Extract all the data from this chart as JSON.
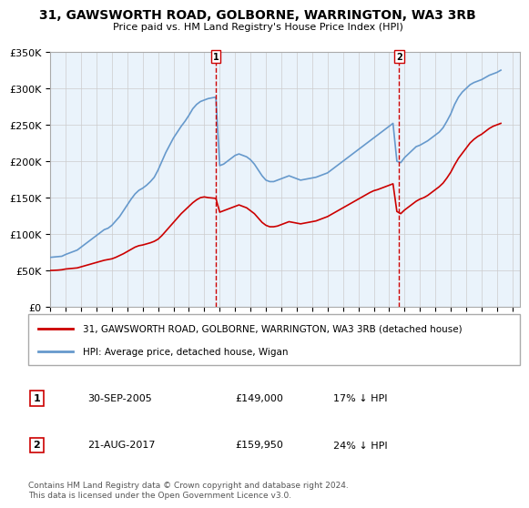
{
  "title": "31, GAWSWORTH ROAD, GOLBORNE, WARRINGTON, WA3 3RB",
  "subtitle": "Price paid vs. HM Land Registry's House Price Index (HPI)",
  "ylabel": "",
  "ylim": [
    0,
    350000
  ],
  "yticks": [
    0,
    50000,
    100000,
    150000,
    200000,
    250000,
    300000,
    350000
  ],
  "ytick_labels": [
    "£0",
    "£50K",
    "£100K",
    "£150K",
    "£200K",
    "£250K",
    "£300K",
    "£350K"
  ],
  "xlim_start": 1995.0,
  "xlim_end": 2025.5,
  "sale1_x": 2005.75,
  "sale1_label": "1",
  "sale1_date": "30-SEP-2005",
  "sale1_price": "£149,000",
  "sale1_hpi": "17% ↓ HPI",
  "sale2_x": 2017.65,
  "sale2_label": "2",
  "sale2_date": "21-AUG-2017",
  "sale2_price": "£159,950",
  "sale2_hpi": "24% ↓ HPI",
  "line_red_color": "#cc0000",
  "line_blue_color": "#6699cc",
  "grid_color": "#cccccc",
  "background_color": "#eaf3fb",
  "legend_label_red": "31, GAWSWORTH ROAD, GOLBORNE, WARRINGTON, WA3 3RB (detached house)",
  "legend_label_blue": "HPI: Average price, detached house, Wigan",
  "footer": "Contains HM Land Registry data © Crown copyright and database right 2024.\nThis data is licensed under the Open Government Licence v3.0.",
  "hpi_years": [
    1995.0,
    1995.25,
    1995.5,
    1995.75,
    1996.0,
    1996.25,
    1996.5,
    1996.75,
    1997.0,
    1997.25,
    1997.5,
    1997.75,
    1998.0,
    1998.25,
    1998.5,
    1998.75,
    1999.0,
    1999.25,
    1999.5,
    1999.75,
    2000.0,
    2000.25,
    2000.5,
    2000.75,
    2001.0,
    2001.25,
    2001.5,
    2001.75,
    2002.0,
    2002.25,
    2002.5,
    2002.75,
    2003.0,
    2003.25,
    2003.5,
    2003.75,
    2004.0,
    2004.25,
    2004.5,
    2004.75,
    2005.0,
    2005.25,
    2005.5,
    2005.75,
    2006.0,
    2006.25,
    2006.5,
    2006.75,
    2007.0,
    2007.25,
    2007.5,
    2007.75,
    2008.0,
    2008.25,
    2008.5,
    2008.75,
    2009.0,
    2009.25,
    2009.5,
    2009.75,
    2010.0,
    2010.25,
    2010.5,
    2010.75,
    2011.0,
    2011.25,
    2011.5,
    2011.75,
    2012.0,
    2012.25,
    2012.5,
    2012.75,
    2013.0,
    2013.25,
    2013.5,
    2013.75,
    2014.0,
    2014.25,
    2014.5,
    2014.75,
    2015.0,
    2015.25,
    2015.5,
    2015.75,
    2016.0,
    2016.25,
    2016.5,
    2016.75,
    2017.0,
    2017.25,
    2017.5,
    2017.75,
    2018.0,
    2018.25,
    2018.5,
    2018.75,
    2019.0,
    2019.25,
    2019.5,
    2019.75,
    2020.0,
    2020.25,
    2020.5,
    2020.75,
    2021.0,
    2021.25,
    2021.5,
    2021.75,
    2022.0,
    2022.25,
    2022.5,
    2022.75,
    2023.0,
    2023.25,
    2023.5,
    2023.75,
    2024.0,
    2024.25
  ],
  "hpi_values": [
    68000,
    68500,
    69000,
    69500,
    72000,
    74000,
    76000,
    78000,
    82000,
    86000,
    90000,
    94000,
    98000,
    102000,
    106000,
    108000,
    112000,
    118000,
    124000,
    132000,
    140000,
    148000,
    155000,
    160000,
    163000,
    167000,
    172000,
    178000,
    188000,
    200000,
    212000,
    222000,
    232000,
    240000,
    248000,
    255000,
    263000,
    272000,
    278000,
    282000,
    284000,
    286000,
    287000,
    288000,
    194000,
    196000,
    200000,
    204000,
    208000,
    210000,
    208000,
    206000,
    202000,
    196000,
    188000,
    180000,
    174000,
    172000,
    172000,
    174000,
    176000,
    178000,
    180000,
    178000,
    176000,
    174000,
    175000,
    176000,
    177000,
    178000,
    180000,
    182000,
    184000,
    188000,
    192000,
    196000,
    200000,
    204000,
    208000,
    212000,
    216000,
    220000,
    224000,
    228000,
    232000,
    236000,
    240000,
    244000,
    248000,
    252000,
    200000,
    198000,
    205000,
    210000,
    215000,
    220000,
    222000,
    225000,
    228000,
    232000,
    236000,
    240000,
    246000,
    255000,
    265000,
    278000,
    288000,
    295000,
    300000,
    305000,
    308000,
    310000,
    312000,
    315000,
    318000,
    320000,
    322000,
    325000
  ],
  "red_years": [
    1995.0,
    1995.25,
    1995.5,
    1995.75,
    1996.0,
    1996.25,
    1996.5,
    1996.75,
    1997.0,
    1997.25,
    1997.5,
    1997.75,
    1998.0,
    1998.25,
    1998.5,
    1998.75,
    1999.0,
    1999.25,
    1999.5,
    1999.75,
    2000.0,
    2000.25,
    2000.5,
    2000.75,
    2001.0,
    2001.25,
    2001.5,
    2001.75,
    2002.0,
    2002.25,
    2002.5,
    2002.75,
    2003.0,
    2003.25,
    2003.5,
    2003.75,
    2004.0,
    2004.25,
    2004.5,
    2004.75,
    2005.0,
    2005.25,
    2005.5,
    2005.75,
    2006.0,
    2006.25,
    2006.5,
    2006.75,
    2007.0,
    2007.25,
    2007.5,
    2007.75,
    2008.0,
    2008.25,
    2008.5,
    2008.75,
    2009.0,
    2009.25,
    2009.5,
    2009.75,
    2010.0,
    2010.25,
    2010.5,
    2010.75,
    2011.0,
    2011.25,
    2011.5,
    2011.75,
    2012.0,
    2012.25,
    2012.5,
    2012.75,
    2013.0,
    2013.25,
    2013.5,
    2013.75,
    2014.0,
    2014.25,
    2014.5,
    2014.75,
    2015.0,
    2015.25,
    2015.5,
    2015.75,
    2016.0,
    2016.25,
    2016.5,
    2016.75,
    2017.0,
    2017.25,
    2017.5,
    2017.75,
    2018.0,
    2018.25,
    2018.5,
    2018.75,
    2019.0,
    2019.25,
    2019.5,
    2019.75,
    2020.0,
    2020.25,
    2020.5,
    2020.75,
    2021.0,
    2021.25,
    2021.5,
    2021.75,
    2022.0,
    2022.25,
    2022.5,
    2022.75,
    2023.0,
    2023.25,
    2023.5,
    2023.75,
    2024.0,
    2024.25
  ],
  "red_values": [
    50000,
    50200,
    50500,
    51000,
    52000,
    52500,
    53000,
    53500,
    55000,
    56500,
    58000,
    59500,
    61000,
    62500,
    64000,
    65000,
    66000,
    68000,
    70500,
    73000,
    76000,
    79000,
    82000,
    84000,
    85000,
    86500,
    88000,
    90000,
    93000,
    98000,
    104000,
    110000,
    116000,
    122000,
    128000,
    133000,
    138000,
    143000,
    147000,
    150000,
    151000,
    150000,
    149500,
    149000,
    130000,
    132000,
    134000,
    136000,
    138000,
    140000,
    138000,
    136000,
    132000,
    128000,
    122000,
    116000,
    112000,
    110000,
    110000,
    111000,
    113000,
    115000,
    117000,
    116000,
    115000,
    114000,
    115000,
    116000,
    117000,
    118000,
    120000,
    122000,
    124000,
    127000,
    130000,
    133000,
    136000,
    139000,
    142000,
    145000,
    148000,
    151000,
    154000,
    157000,
    159500,
    161000,
    163000,
    165000,
    167000,
    169000,
    131000,
    128000,
    133000,
    137000,
    141000,
    145000,
    148000,
    150000,
    153000,
    157000,
    161000,
    165000,
    170000,
    177000,
    185000,
    195000,
    204000,
    211000,
    218000,
    225000,
    230000,
    234000,
    237000,
    241000,
    245000,
    248000,
    250000,
    252000
  ]
}
